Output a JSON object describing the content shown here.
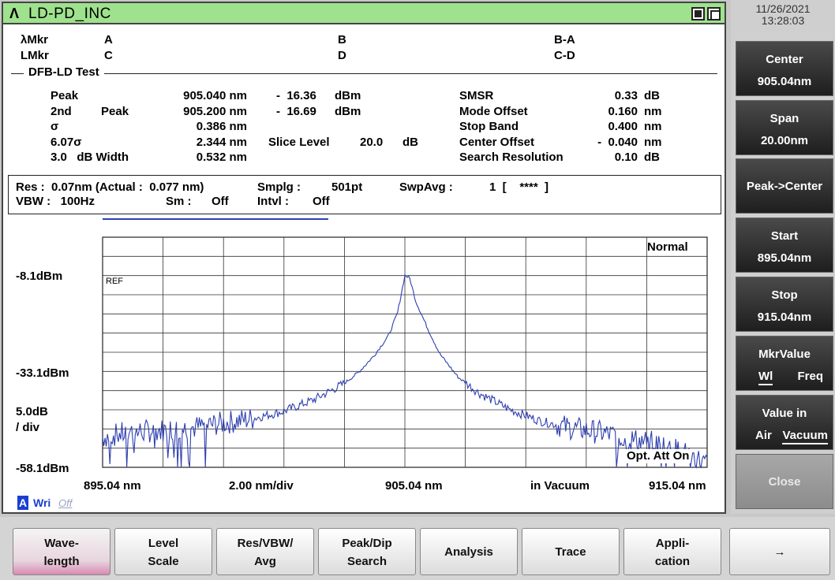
{
  "window": {
    "logo": "Λ",
    "title": "LD-PD_INC"
  },
  "markers": {
    "lambda_mkr": "λMkr",
    "l_mkr": "LMkr",
    "a": "A",
    "b": "B",
    "ba": "B-A",
    "c": "C",
    "d": "D",
    "cd": "C-D"
  },
  "dfb": {
    "title": "DFB-LD Test",
    "rows": [
      {
        "label": "Peak",
        "sub": "",
        "value": "905.040 nm",
        "level": "-  16.36",
        "unit": "dBm"
      },
      {
        "label": "2nd",
        "sub": "Peak",
        "value": "905.200 nm",
        "level": "-  16.69",
        "unit": "dBm"
      },
      {
        "label": "σ",
        "sub": "",
        "value": "0.386 nm"
      },
      {
        "label": "6.07σ",
        "sub": "",
        "value": "2.344 nm"
      },
      {
        "label": "3.0   dB Width",
        "sub": "",
        "value": "0.532 nm"
      }
    ],
    "slice_label": "Slice Level",
    "slice_value": "20.0",
    "slice_unit": "dB",
    "right": [
      {
        "label": "SMSR",
        "value": "0.33",
        "unit": "dB"
      },
      {
        "label": "Mode Offset",
        "value": "0.160",
        "unit": "nm"
      },
      {
        "label": "Stop Band",
        "value": "0.400",
        "unit": "nm"
      },
      {
        "label": "Center Offset",
        "value": "-  0.040",
        "unit": "nm"
      },
      {
        "label": "Search Resolution",
        "value": "0.10",
        "unit": "dB"
      }
    ]
  },
  "settings": {
    "res": "Res :  0.07nm (Actual :  0.077 nm)",
    "smplg_label": "Smplg :",
    "smplg_value": "501pt",
    "swpavg_label": "SwpAvg :",
    "swpavg_value": "1  [    ****  ]",
    "vbw": "VBW :   100Hz",
    "sm_label": "Sm :",
    "sm_value": "Off",
    "intvl_label": "Intvl :",
    "intvl_value": "Off"
  },
  "plot": {
    "mode": "Normal",
    "ref": "REF",
    "y_top": "-8.1dBm",
    "y_mid": "-33.1dBm",
    "y_bottom": "-58.1dBm",
    "scale": "5.0dB",
    "scale_unit": "/ div",
    "x_start": "895.04 nm",
    "x_div": "2.00 nm/div",
    "x_center": "905.04 nm",
    "x_medium": "in Vacuum",
    "x_stop": "915.04 nm",
    "att": "Opt. Att On",
    "trace_badge": "A",
    "trace_wri": "Wri",
    "trace_off": "Off",
    "trace_color": "#2d3fb0"
  },
  "chart_data": {
    "type": "line",
    "title": "",
    "x_unit": "nm",
    "y_unit": "dBm",
    "xlim": [
      895.04,
      915.04
    ],
    "ylim": [
      -58.1,
      -8.1
    ],
    "peak": {
      "x": 905.04,
      "y": -16.36
    },
    "series": [
      {
        "x": [
          895.04,
          896.0,
          897.0,
          898.0,
          899.0,
          900.0,
          901.0,
          902.0,
          903.0,
          903.5,
          904.0,
          904.5,
          904.8,
          905.04,
          905.2,
          905.4,
          905.8,
          906.2,
          906.8,
          907.5,
          908.5,
          909.5,
          910.5,
          911.5,
          912.5,
          913.5,
          914.5,
          915.04
        ],
        "y": [
          -51.5,
          -50.5,
          -50.0,
          -49.5,
          -48.5,
          -47.5,
          -46.0,
          -43.5,
          -40.0,
          -37.5,
          -34.0,
          -29.5,
          -24.5,
          -16.4,
          -17.0,
          -22.0,
          -28.0,
          -33.5,
          -38.5,
          -42.0,
          -45.5,
          -48.0,
          -49.5,
          -50.5,
          -52.0,
          -53.0,
          -55.5,
          -57.5
        ]
      }
    ]
  },
  "side": {
    "date": "11/26/2021",
    "time": "13:28:03",
    "center_label": "Center",
    "center_value": "905.04nm",
    "span_label": "Span",
    "span_value": "20.00nm",
    "peak_center": "Peak->Center",
    "start_label": "Start",
    "start_value": "895.04nm",
    "stop_label": "Stop",
    "stop_value": "915.04nm",
    "mkr_label": "MkrValue",
    "mkr_wl": "Wl",
    "mkr_freq": "Freq",
    "value_in_label": "Value in",
    "value_air": "Air",
    "value_vacuum": "Vacuum",
    "close": "Close"
  },
  "bottom": {
    "wave_1": "Wave-",
    "wave_2": "length",
    "level_1": "Level",
    "level_2": "Scale",
    "res_1": "Res/VBW/",
    "res_2": "Avg",
    "peak_1": "Peak/Dip",
    "peak_2": "Search",
    "analysis": "Analysis",
    "trace": "Trace",
    "appli_1": "Appli-",
    "appli_2": "cation",
    "next": "→"
  }
}
